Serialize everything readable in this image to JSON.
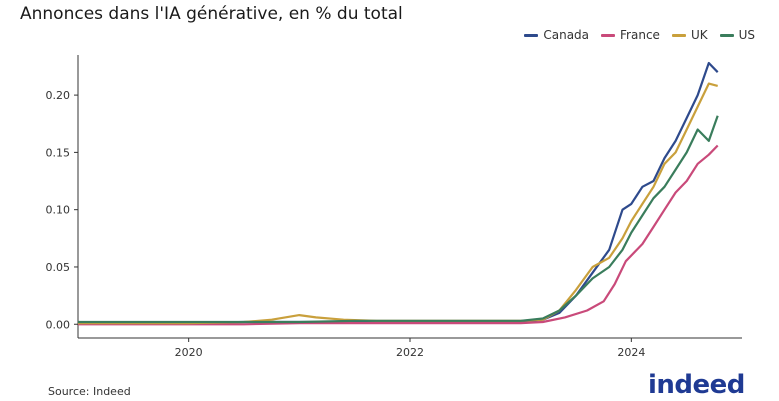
{
  "title": "Annonces dans l'IA générative, en % du total",
  "source": "Source: Indeed",
  "logo_text": "indeed",
  "chart_data": {
    "type": "line",
    "title": "Annonces dans l'IA générative, en % du total",
    "xlabel": "",
    "ylabel": "",
    "xlim": [
      2019.0,
      2025.0
    ],
    "ylim": [
      -0.012,
      0.235
    ],
    "x_ticks": [
      2020,
      2022,
      2024
    ],
    "x_tick_labels": [
      "2020",
      "2022",
      "2024"
    ],
    "y_ticks": [
      0.0,
      0.05,
      0.1,
      0.15,
      0.2
    ],
    "y_tick_labels": [
      "0.00",
      "0.05",
      "0.10",
      "0.15",
      "0.20"
    ],
    "grid": false,
    "legend_position": "top-right",
    "series": [
      {
        "name": "Canada",
        "color": "#2e4a8c",
        "points": [
          [
            2019.0,
            0.001
          ],
          [
            2019.5,
            0.001
          ],
          [
            2020.0,
            0.001
          ],
          [
            2020.5,
            0.002
          ],
          [
            2021.0,
            0.002
          ],
          [
            2021.5,
            0.002
          ],
          [
            2022.0,
            0.002
          ],
          [
            2022.5,
            0.002
          ],
          [
            2023.0,
            0.002
          ],
          [
            2023.2,
            0.004
          ],
          [
            2023.35,
            0.01
          ],
          [
            2023.5,
            0.025
          ],
          [
            2023.65,
            0.045
          ],
          [
            2023.8,
            0.065
          ],
          [
            2023.92,
            0.1
          ],
          [
            2024.0,
            0.105
          ],
          [
            2024.1,
            0.12
          ],
          [
            2024.2,
            0.125
          ],
          [
            2024.3,
            0.145
          ],
          [
            2024.4,
            0.16
          ],
          [
            2024.5,
            0.18
          ],
          [
            2024.6,
            0.2
          ],
          [
            2024.7,
            0.228
          ],
          [
            2024.78,
            0.22
          ]
        ]
      },
      {
        "name": "France",
        "color": "#c94a7a",
        "points": [
          [
            2019.0,
            0.0
          ],
          [
            2019.5,
            0.0
          ],
          [
            2020.0,
            0.0
          ],
          [
            2020.5,
            0.0
          ],
          [
            2021.0,
            0.001
          ],
          [
            2021.5,
            0.001
          ],
          [
            2022.0,
            0.001
          ],
          [
            2022.5,
            0.001
          ],
          [
            2023.0,
            0.001
          ],
          [
            2023.2,
            0.002
          ],
          [
            2023.4,
            0.006
          ],
          [
            2023.6,
            0.012
          ],
          [
            2023.75,
            0.02
          ],
          [
            2023.85,
            0.035
          ],
          [
            2023.95,
            0.055
          ],
          [
            2024.1,
            0.07
          ],
          [
            2024.2,
            0.085
          ],
          [
            2024.3,
            0.1
          ],
          [
            2024.4,
            0.115
          ],
          [
            2024.5,
            0.125
          ],
          [
            2024.6,
            0.14
          ],
          [
            2024.7,
            0.148
          ],
          [
            2024.78,
            0.156
          ]
        ]
      },
      {
        "name": "UK",
        "color": "#c9a03c",
        "points": [
          [
            2019.0,
            0.001
          ],
          [
            2019.5,
            0.001
          ],
          [
            2020.0,
            0.001
          ],
          [
            2020.5,
            0.002
          ],
          [
            2020.75,
            0.004
          ],
          [
            2021.0,
            0.008
          ],
          [
            2021.15,
            0.006
          ],
          [
            2021.4,
            0.004
          ],
          [
            2021.7,
            0.003
          ],
          [
            2022.0,
            0.003
          ],
          [
            2022.5,
            0.003
          ],
          [
            2023.0,
            0.003
          ],
          [
            2023.2,
            0.004
          ],
          [
            2023.35,
            0.012
          ],
          [
            2023.5,
            0.03
          ],
          [
            2023.65,
            0.05
          ],
          [
            2023.8,
            0.058
          ],
          [
            2023.92,
            0.075
          ],
          [
            2024.0,
            0.09
          ],
          [
            2024.1,
            0.105
          ],
          [
            2024.2,
            0.12
          ],
          [
            2024.3,
            0.14
          ],
          [
            2024.4,
            0.15
          ],
          [
            2024.5,
            0.17
          ],
          [
            2024.6,
            0.19
          ],
          [
            2024.7,
            0.21
          ],
          [
            2024.78,
            0.208
          ]
        ]
      },
      {
        "name": "US",
        "color": "#3a7d5c",
        "points": [
          [
            2019.0,
            0.002
          ],
          [
            2019.5,
            0.002
          ],
          [
            2020.0,
            0.002
          ],
          [
            2020.5,
            0.002
          ],
          [
            2021.0,
            0.002
          ],
          [
            2021.5,
            0.003
          ],
          [
            2022.0,
            0.003
          ],
          [
            2022.5,
            0.003
          ],
          [
            2023.0,
            0.003
          ],
          [
            2023.2,
            0.005
          ],
          [
            2023.35,
            0.012
          ],
          [
            2023.5,
            0.025
          ],
          [
            2023.65,
            0.04
          ],
          [
            2023.8,
            0.05
          ],
          [
            2023.92,
            0.065
          ],
          [
            2024.0,
            0.08
          ],
          [
            2024.1,
            0.095
          ],
          [
            2024.2,
            0.11
          ],
          [
            2024.3,
            0.12
          ],
          [
            2024.4,
            0.135
          ],
          [
            2024.5,
            0.15
          ],
          [
            2024.6,
            0.17
          ],
          [
            2024.7,
            0.16
          ],
          [
            2024.78,
            0.182
          ]
        ]
      }
    ]
  }
}
